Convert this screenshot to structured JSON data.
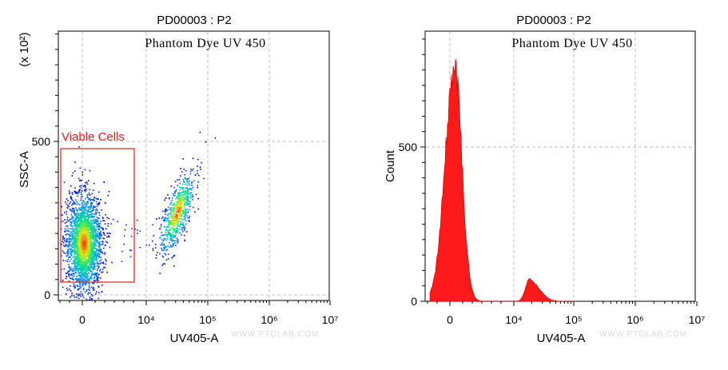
{
  "chart_data": [
    {
      "type": "scatter",
      "title": "PD00003 : P2",
      "inner_title": "Phantom Dye UV 450",
      "xlabel": "UV405-A",
      "ylabel": "SSC-A",
      "y_multiplier": "(x 10²)",
      "x_scale": "biexponential",
      "x_ticks": [
        "0",
        "10⁴",
        "10⁵",
        "10⁶",
        "10⁷"
      ],
      "y_ticks": [
        "0",
        "500"
      ],
      "ylim": [
        -10,
        850
      ],
      "grid": true,
      "gate": {
        "label": "Viable Cells",
        "x_range": [
          -0.4,
          0.85
        ],
        "y_range": [
          45,
          480
        ]
      },
      "populations": [
        {
          "name": "",
          "x_center": 0.02,
          "y_center": 170,
          "count_level": "high"
        },
        {
          "name": "",
          "x_center": 1.5,
          "y_center": 270,
          "count_level": "medium"
        }
      ],
      "watermark": "WWW.PTGLAB.COM"
    },
    {
      "type": "area",
      "title": "PD00003 : P2",
      "inner_title": "Phantom Dye UV 450",
      "xlabel": "UV405-A",
      "ylabel": "Count",
      "x_scale": "biexponential",
      "x_ticks": [
        "0",
        "10⁴",
        "10⁵",
        "10⁶",
        "10⁷"
      ],
      "y_ticks": [
        "0",
        "500"
      ],
      "ylim": [
        0,
        850
      ],
      "grid": true,
      "peaks": [
        {
          "x_center": 0.0,
          "height": 760
        },
        {
          "x_center": 1.3,
          "height": 70
        }
      ],
      "color": "#ff1a1a",
      "watermark": "WWW.PTGLAB.COM"
    }
  ]
}
